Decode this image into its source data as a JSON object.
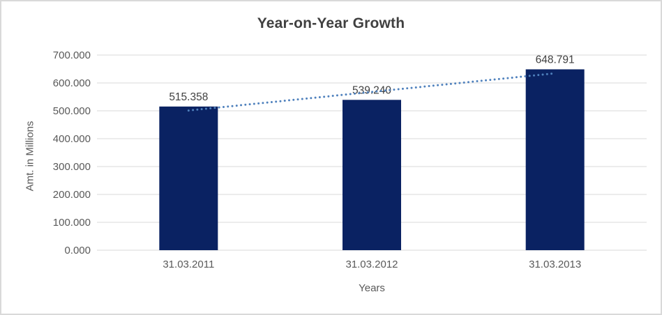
{
  "chart_data": {
    "type": "bar",
    "title": "Year-on-Year Growth",
    "categories": [
      "31.03.2011",
      "31.03.2012",
      "31.03.2013"
    ],
    "values": [
      515.358,
      539.24,
      648.791
    ],
    "value_labels": [
      "515.358",
      "539.240",
      "648.791"
    ],
    "xlabel": "Years",
    "ylabel": "Amt. in Millions",
    "ylim": [
      0,
      700
    ],
    "ytick_step": 100,
    "ytick_labels": [
      "0.000",
      "100.000",
      "200.000",
      "300.000",
      "400.000",
      "500.000",
      "600.000",
      "700.000"
    ],
    "grid": true,
    "legend": "none",
    "trendline": {
      "type": "linear",
      "style": "dotted"
    },
    "colors": {
      "bar": "#0a2262",
      "gridline": "#d9d9d9",
      "axis_line": "#d9d9d9",
      "trendline": "#4f81bd",
      "title_text": "#404040",
      "tick_text": "#595959",
      "value_label_text": "#404040",
      "frame_border": "#d9d9d9",
      "background": "#ffffff"
    }
  }
}
